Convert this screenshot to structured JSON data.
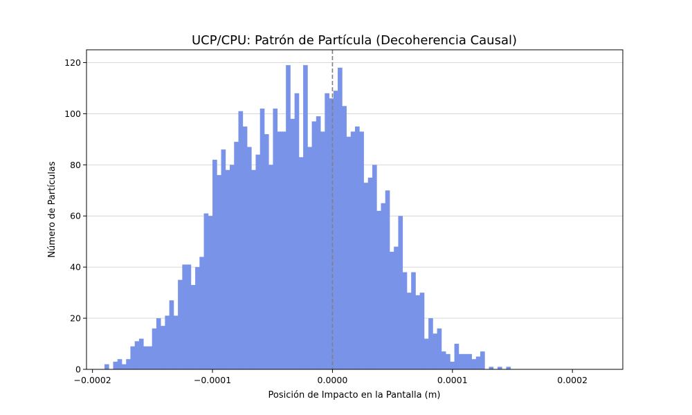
{
  "chart_data": {
    "type": "bar",
    "title": "UCP/CPU: Patrón de Partícula (Decoherencia Causal)",
    "xlabel": "Posición de Impacto en la Pantalla (m)",
    "ylabel": "Número de Partículas",
    "xlim": [
      -0.000205,
      0.000242
    ],
    "ylim": [
      0,
      125
    ],
    "xticks": [
      -0.0002,
      -0.0001,
      0,
      0.0001,
      0.0002
    ],
    "xtick_labels": [
      "−0.0002",
      "−0.0001",
      "0.0000",
      "0.0001",
      "0.0002"
    ],
    "yticks": [
      0,
      20,
      40,
      60,
      80,
      100,
      120
    ],
    "ytick_labels": [
      "0",
      "20",
      "40",
      "60",
      "80",
      "100",
      "120"
    ],
    "grid": "y",
    "bar_color": "#7893e8",
    "reference_line": {
      "x": 0,
      "style": "dashed",
      "color": "#808080"
    },
    "bin_start": -0.00019,
    "bin_width": 3.6e-06,
    "counts": [
      2,
      0,
      3,
      4,
      2,
      4,
      9,
      11,
      12,
      9,
      9,
      16,
      20,
      17,
      21,
      27,
      21,
      35,
      41,
      41,
      33,
      40,
      44,
      61,
      60,
      82,
      76,
      86,
      78,
      80,
      89,
      101,
      95,
      87,
      78,
      84,
      102,
      92,
      80,
      102,
      93,
      93,
      119,
      98,
      108,
      83,
      119,
      87,
      97,
      99,
      93,
      108,
      106,
      109,
      118,
      103,
      91,
      93,
      95,
      93,
      73,
      75,
      80,
      62,
      65,
      70,
      46,
      48,
      60,
      38,
      30,
      38,
      29,
      30,
      12,
      20,
      14,
      16,
      7,
      6,
      3,
      10,
      6,
      6,
      6,
      4,
      5,
      7,
      0,
      1,
      0,
      1,
      0,
      1
    ]
  }
}
